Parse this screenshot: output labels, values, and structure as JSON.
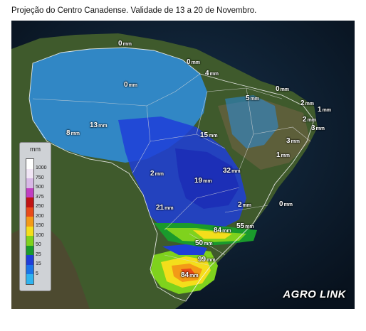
{
  "caption": "Projeção do Centro Canadense. Validade de 13 a 20 de Novembro.",
  "legend": {
    "title": "mm",
    "ticks": [
      "1000",
      "750",
      "500",
      "375",
      "250",
      "200",
      "150",
      "100",
      "50",
      "25",
      "15",
      "5"
    ],
    "colors": [
      "#ffffff",
      "#f1e6f5",
      "#d8b9e6",
      "#c13fc1",
      "#c01414",
      "#e84b1a",
      "#f39a17",
      "#f4de1b",
      "#7fd21d",
      "#1a9a2c",
      "#1f3ed8",
      "#1a74e8",
      "#2fb3ef"
    ]
  },
  "labels": [
    {
      "value": "0",
      "unit": "mm"
    },
    {
      "value": "0",
      "unit": "mm"
    },
    {
      "value": "4",
      "unit": "mm"
    },
    {
      "value": "0",
      "unit": "mm"
    },
    {
      "value": "0",
      "unit": "mm"
    },
    {
      "value": "5",
      "unit": "mm"
    },
    {
      "value": "2",
      "unit": "mm"
    },
    {
      "value": "1",
      "unit": "mm"
    },
    {
      "value": "2",
      "unit": "mm"
    },
    {
      "value": "3",
      "unit": "mm"
    },
    {
      "value": "13",
      "unit": "mm"
    },
    {
      "value": "8",
      "unit": "mm"
    },
    {
      "value": "15",
      "unit": "mm"
    },
    {
      "value": "3",
      "unit": "mm"
    },
    {
      "value": "1",
      "unit": "mm"
    },
    {
      "value": "2",
      "unit": "mm"
    },
    {
      "value": "19",
      "unit": "mm"
    },
    {
      "value": "32",
      "unit": "mm"
    },
    {
      "value": "21",
      "unit": "mm"
    },
    {
      "value": "2",
      "unit": "mm"
    },
    {
      "value": "0",
      "unit": "mm"
    },
    {
      "value": "84",
      "unit": "mm"
    },
    {
      "value": "55",
      "unit": "mm"
    },
    {
      "value": "50",
      "unit": "mm"
    },
    {
      "value": "99",
      "unit": "mm"
    },
    {
      "value": "84",
      "unit": "mm"
    }
  ],
  "logo": "AGRO LINK"
}
